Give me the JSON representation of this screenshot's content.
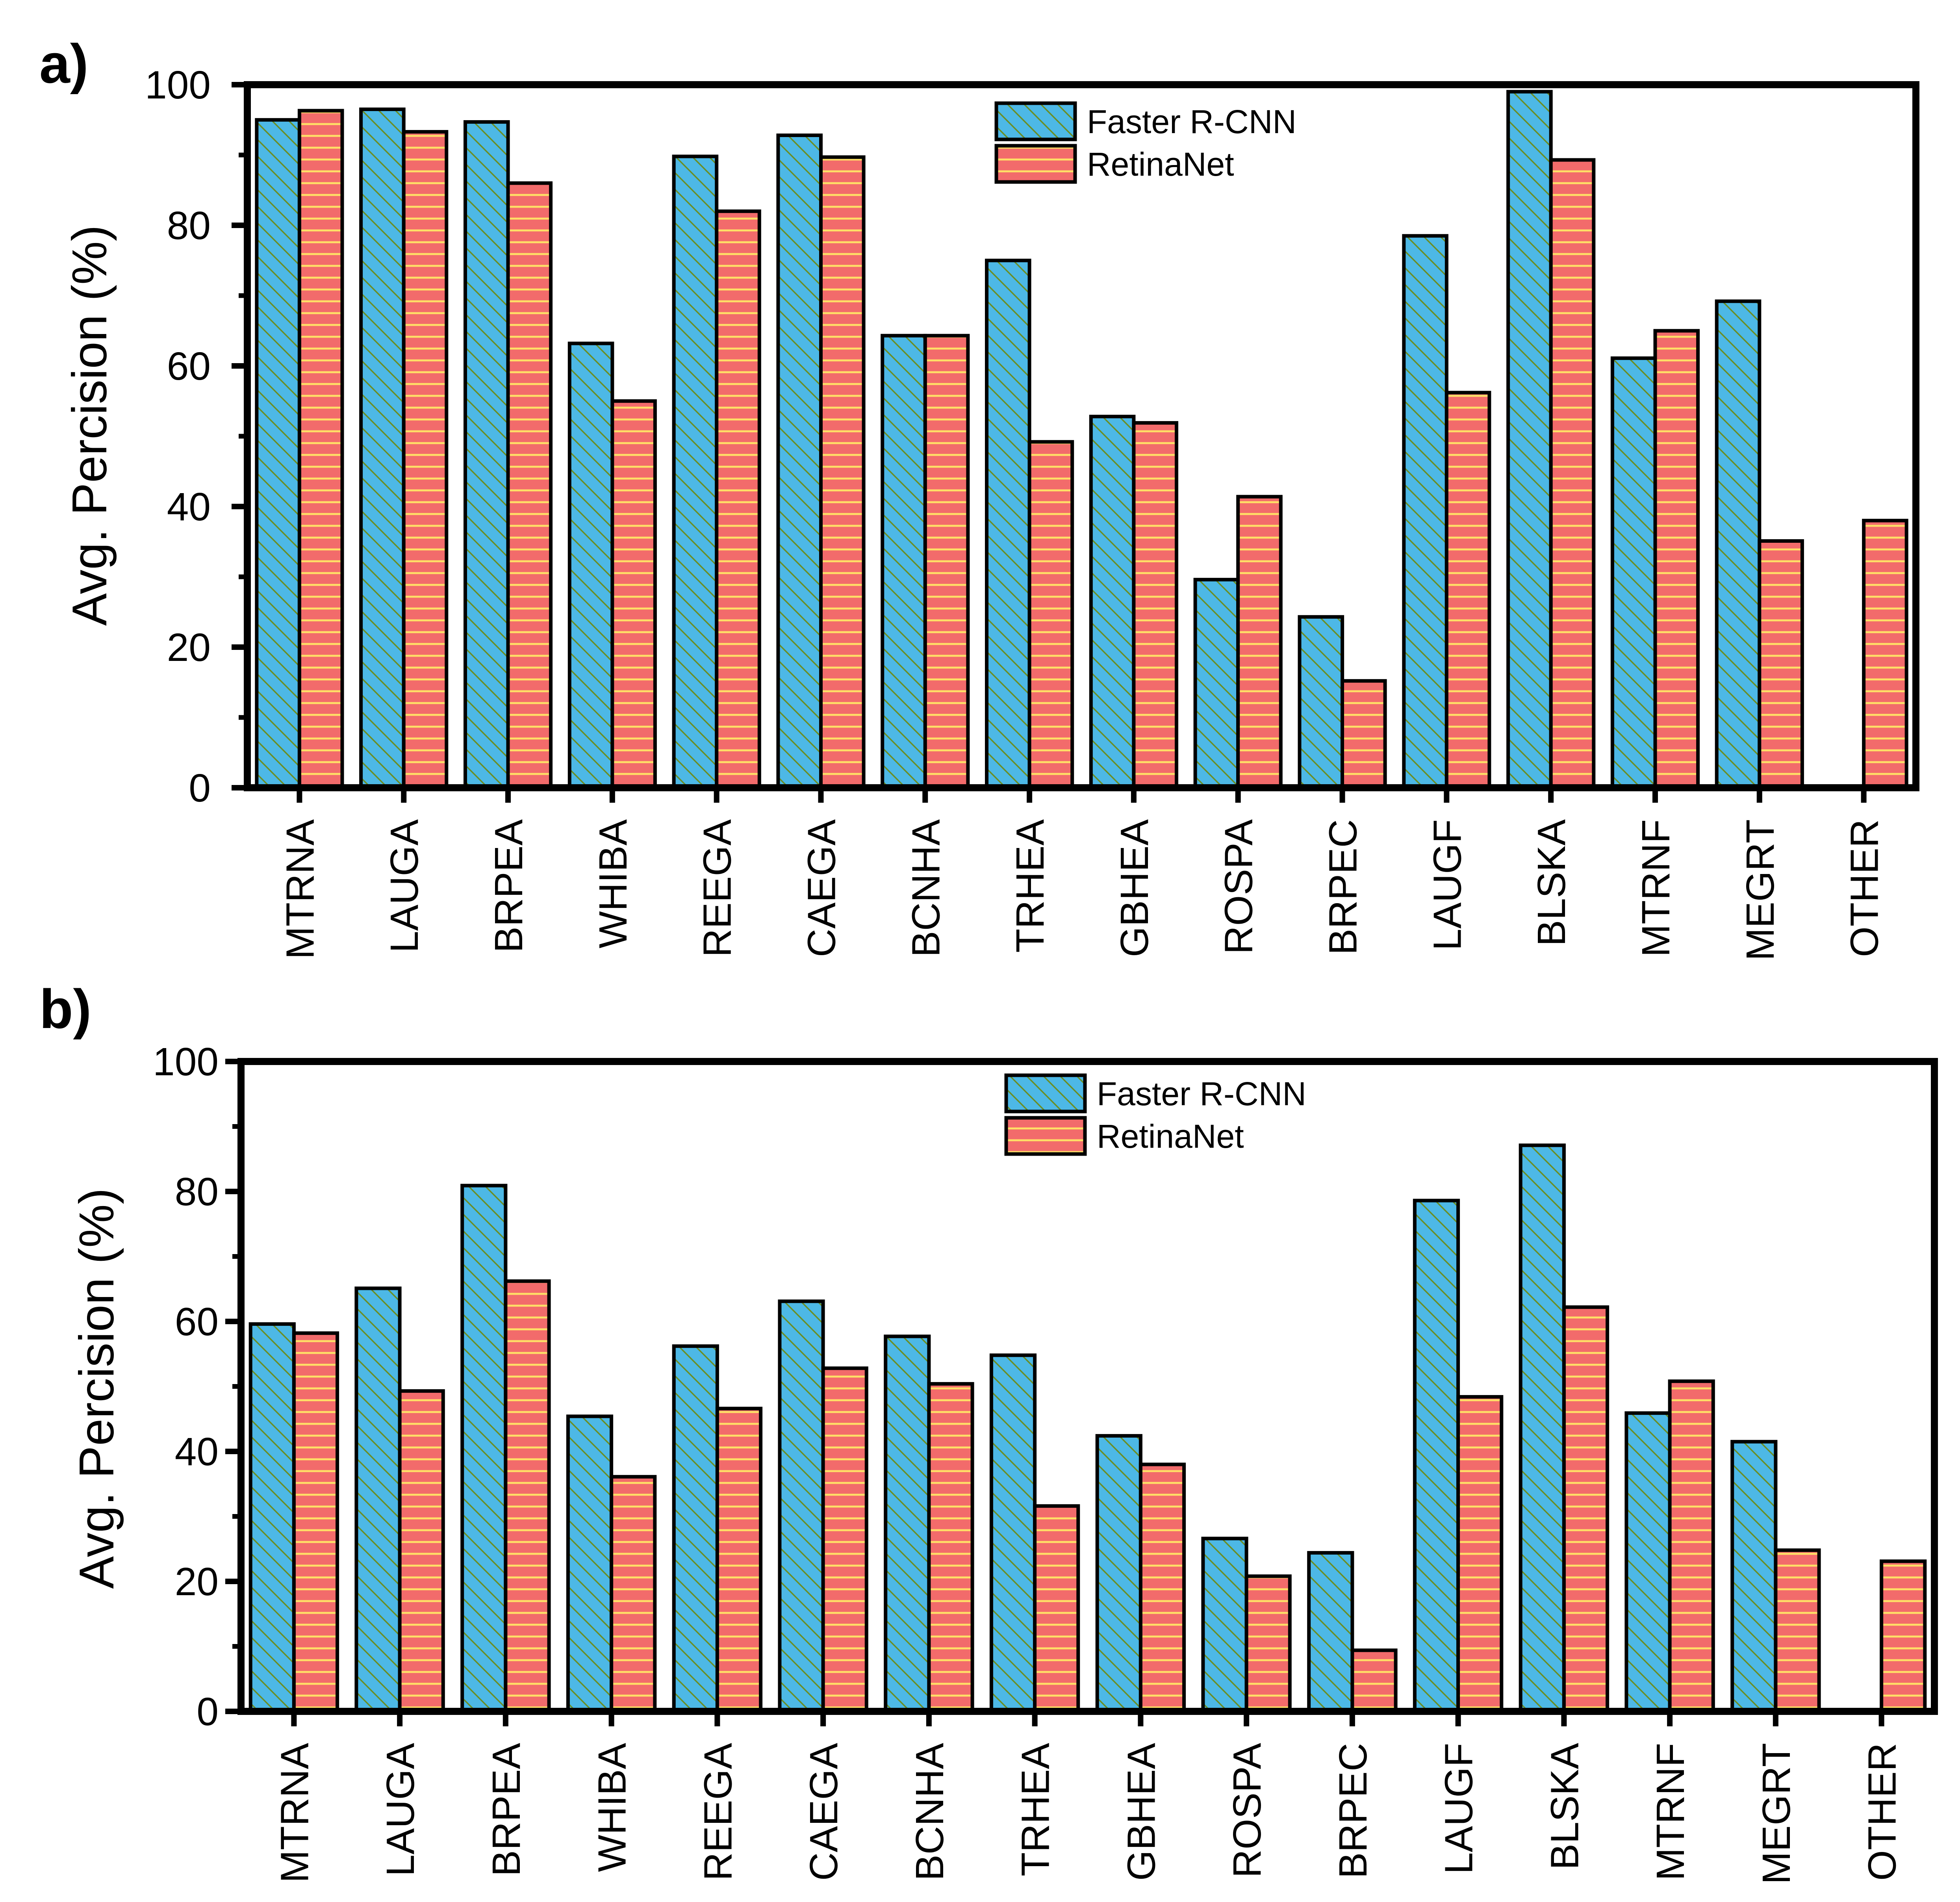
{
  "colors": {
    "faster_fill": "#4db8e6",
    "faster_hatch": "#6b8e23",
    "retina_fill": "#f26b6b",
    "retina_hatch": "#ffe066",
    "outline": "#000000"
  },
  "chart_data": [
    {
      "panel": "a)",
      "type": "bar",
      "title": "",
      "xlabel": "",
      "ylabel": "Avg. Percision (%)",
      "ylim": [
        0,
        100
      ],
      "yticks": [
        "0",
        "20",
        "40",
        "60",
        "80",
        "100"
      ],
      "grid": false,
      "legend_position": "top-center",
      "categories": [
        "MTRNA",
        "LAUGA",
        "BRPEA",
        "WHIBA",
        "REEGA",
        "CAEGA",
        "BCNHA",
        "TRHEA",
        "GBHEA",
        "ROSPA",
        "BRPEC",
        "LAUGF",
        "BLSKA",
        "MTRNF",
        "MEGRT",
        "OTHER"
      ],
      "series": [
        {
          "name": "Faster R-CNN",
          "values": [
            95,
            96.5,
            94.7,
            63.2,
            89.8,
            92.8,
            64.3,
            75,
            52.8,
            29.6,
            24.3,
            78.5,
            99,
            61.1,
            69.2,
            0
          ]
        },
        {
          "name": "RetinaNet",
          "values": [
            96.3,
            93.3,
            86,
            55,
            82,
            89.7,
            64.3,
            49.2,
            51.9,
            41.4,
            15.2,
            56.2,
            89.3,
            65,
            35.1,
            38
          ]
        }
      ]
    },
    {
      "panel": "b)",
      "type": "bar",
      "title": "",
      "xlabel": "",
      "ylabel": "Avg. Percision (%)",
      "ylim": [
        0,
        100
      ],
      "yticks": [
        "0",
        "20",
        "40",
        "60",
        "80",
        "100"
      ],
      "grid": false,
      "legend_position": "top-center",
      "categories": [
        "MTRNA",
        "LAUGA",
        "BRPEA",
        "WHIBA",
        "REEGA",
        "CAEGA",
        "BCNHA",
        "TRHEA",
        "GBHEA",
        "ROSPA",
        "BRPEC",
        "LAUGF",
        "BLSKA",
        "MTRNF",
        "MEGRT",
        "OTHER"
      ],
      "series": [
        {
          "name": "Faster R-CNN",
          "values": [
            59.6,
            65.1,
            80.9,
            45.4,
            56.2,
            63.1,
            57.7,
            54.8,
            42.4,
            26.6,
            24.4,
            78.6,
            87.1,
            45.9,
            41.5,
            0
          ]
        },
        {
          "name": "RetinaNet",
          "values": [
            58.2,
            49.3,
            66.2,
            36.1,
            46.6,
            52.8,
            50.4,
            31.6,
            38,
            20.8,
            9.4,
            48.4,
            62.2,
            50.8,
            24.8,
            23.1
          ]
        }
      ]
    }
  ]
}
